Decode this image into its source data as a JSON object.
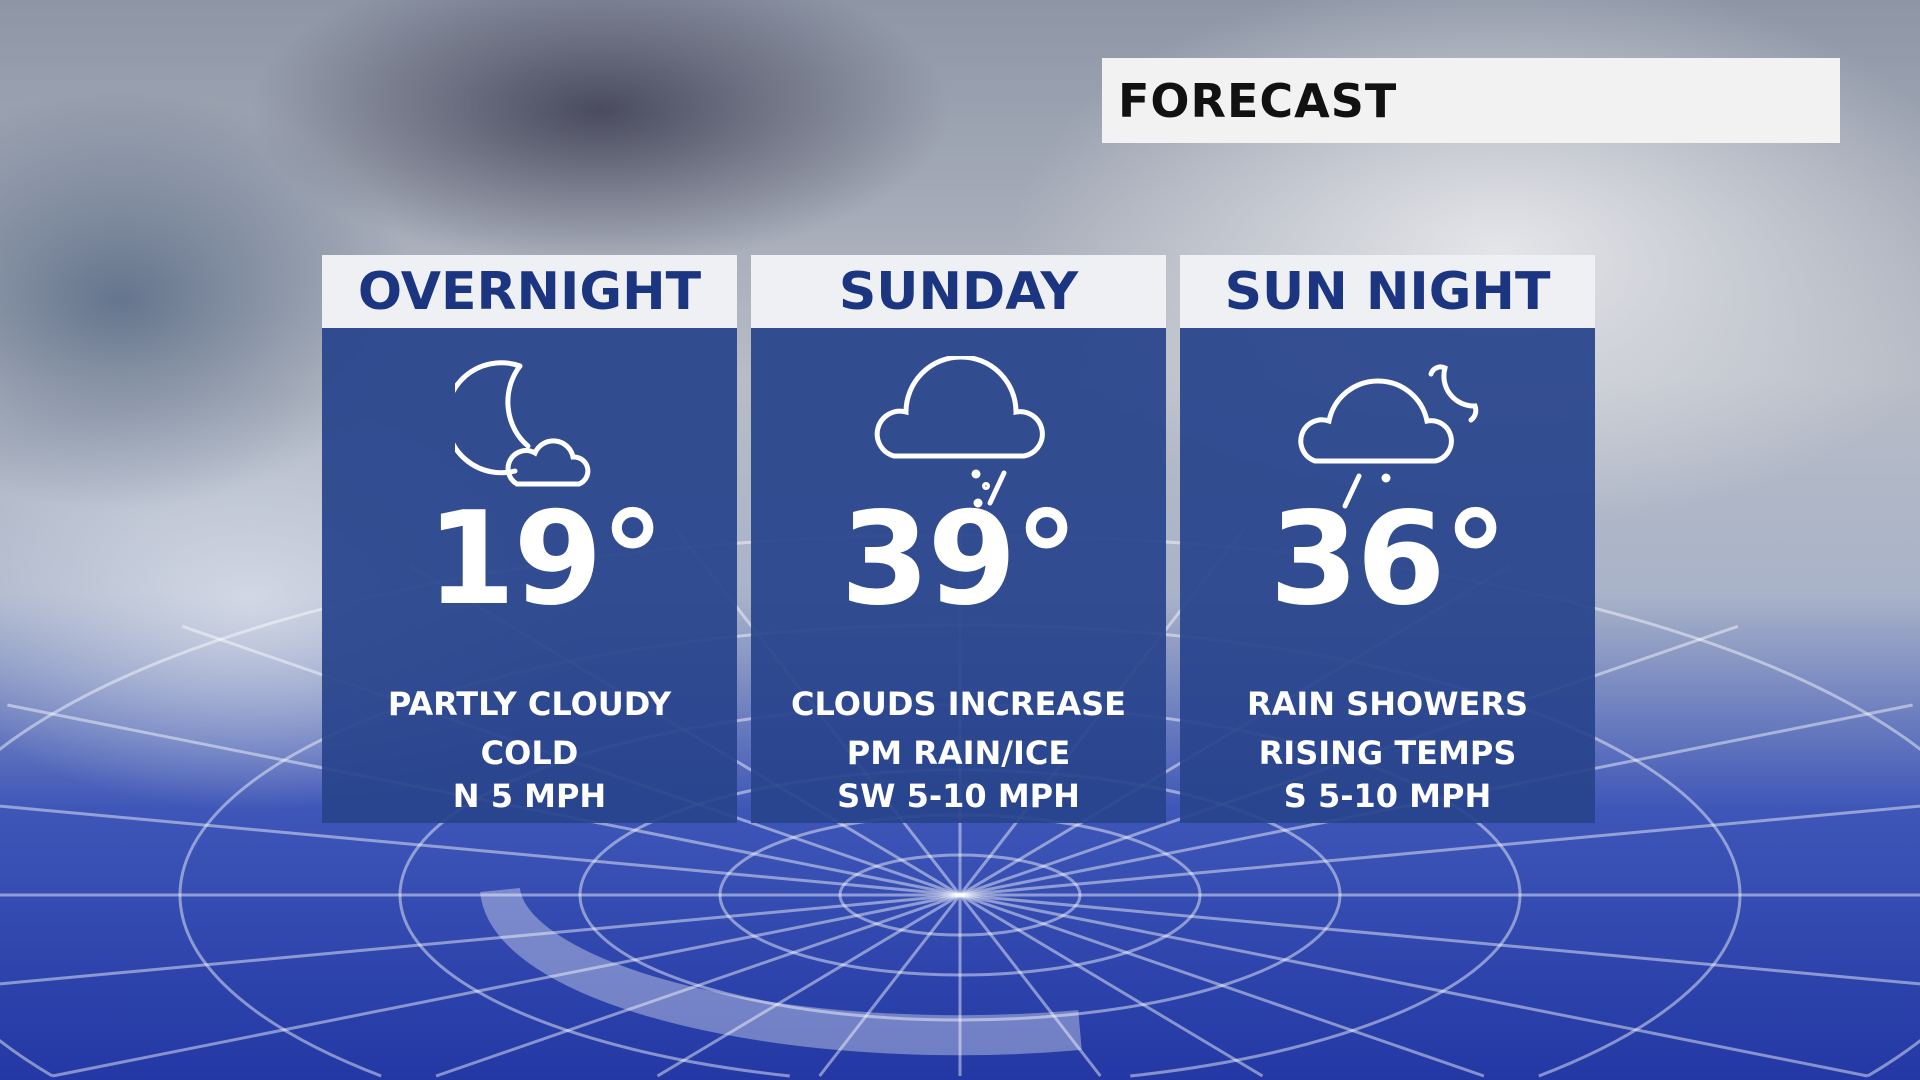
{
  "title": "FORECAST",
  "panels": [
    {
      "label": "OVERNIGHT",
      "icon": "moon-cloud-icon",
      "temp": "19°",
      "lines": [
        "PARTLY CLOUDY",
        "COLD",
        "N 5 MPH"
      ]
    },
    {
      "label": "SUNDAY",
      "icon": "cloud-rain-ice-icon",
      "temp": "39°",
      "lines": [
        "CLOUDS INCREASE",
        "PM RAIN/ICE",
        "SW 5-10 MPH"
      ]
    },
    {
      "label": "SUN NIGHT",
      "icon": "cloud-moon-rain-icon",
      "temp": "36°",
      "lines": [
        "RAIN SHOWERS",
        "RISING TEMPS",
        "S 5-10 MPH"
      ]
    }
  ],
  "colors": {
    "panel": "#2a4690",
    "header_text": "#1c3580",
    "header_bg": "#eef0f4"
  }
}
